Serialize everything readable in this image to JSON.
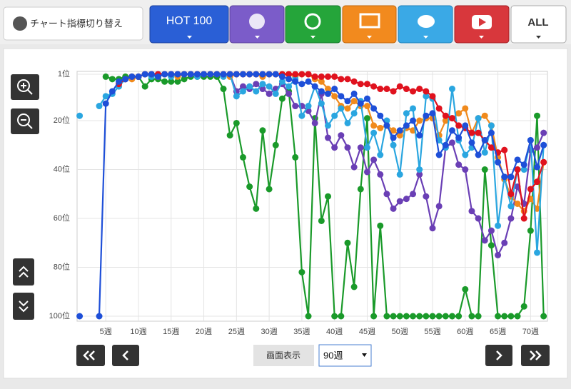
{
  "ui": {
    "switch_label": "チャート指標切り替え",
    "tabs": [
      "HOT 100",
      "ALL"
    ],
    "display_label": "画面表示",
    "period": "90週"
  },
  "chart_data": {
    "type": "line",
    "x": [
      1,
      2,
      3,
      4,
      5,
      6,
      7,
      8,
      9,
      10,
      11,
      12,
      13,
      14,
      15,
      16,
      17,
      18,
      19,
      20,
      21,
      22,
      23,
      24,
      25,
      26,
      27,
      28,
      29,
      30,
      31,
      32,
      33,
      34,
      35,
      36,
      37,
      38,
      39,
      40,
      41,
      42,
      43,
      44,
      45,
      46,
      47,
      48,
      49,
      50,
      51,
      52,
      53,
      54,
      55,
      56,
      57,
      58,
      59,
      60,
      61,
      62,
      63,
      64,
      65,
      66,
      67,
      68,
      69,
      70,
      71,
      72
    ],
    "xlim": [
      0.5,
      72.8
    ],
    "xticks": [
      {
        "value": 5,
        "label": "5週"
      },
      {
        "value": 10,
        "label": "10週"
      },
      {
        "value": 15,
        "label": "15週"
      },
      {
        "value": 20,
        "label": "20週"
      },
      {
        "value": 25,
        "label": "25週"
      },
      {
        "value": 30,
        "label": "30週"
      },
      {
        "value": 35,
        "label": "35週"
      },
      {
        "value": 40,
        "label": "40週"
      },
      {
        "value": 45,
        "label": "45週"
      },
      {
        "value": 50,
        "label": "50週"
      },
      {
        "value": 55,
        "label": "55週"
      },
      {
        "value": 60,
        "label": "60週"
      },
      {
        "value": 65,
        "label": "65週"
      },
      {
        "value": 70,
        "label": "70週"
      }
    ],
    "ylim": [
      100,
      1
    ],
    "yticks": [
      {
        "value": 1,
        "label": "1位"
      },
      {
        "value": 20,
        "label": "20位"
      },
      {
        "value": 40,
        "label": "40位"
      },
      {
        "value": 60,
        "label": "60位"
      },
      {
        "value": 80,
        "label": "80位"
      },
      {
        "value": 100,
        "label": "100位"
      }
    ],
    "grid": true,
    "series": [
      {
        "color": "#1a9a2a",
        "values": [
          null,
          null,
          null,
          null,
          2,
          3,
          3,
          2,
          2,
          2,
          6,
          3,
          3,
          4,
          4,
          4,
          3,
          2,
          2,
          2,
          2,
          2,
          7,
          26,
          21,
          35,
          47,
          56,
          24,
          48,
          30,
          11,
          8,
          35,
          82,
          100,
          19,
          61,
          51,
          100,
          100,
          70,
          88,
          48,
          19,
          100,
          63,
          100,
          100,
          100,
          100,
          100,
          100,
          100,
          100,
          100,
          100,
          100,
          100,
          89,
          100,
          100,
          40,
          71,
          100,
          100,
          100,
          100,
          96,
          65,
          18,
          100
        ]
      },
      {
        "color": "#6a3fb5",
        "values": [
          null,
          null,
          null,
          null,
          null,
          null,
          null,
          3,
          2,
          2,
          1,
          1,
          1,
          1,
          1,
          1,
          1,
          1,
          1,
          1,
          1,
          1,
          1,
          1,
          8,
          6,
          7,
          5,
          7,
          9,
          7,
          5,
          9,
          14,
          14,
          16,
          21,
          9,
          27,
          31,
          26,
          31,
          39,
          31,
          41,
          36,
          42,
          50,
          56,
          53,
          52,
          50,
          42,
          51,
          64,
          55,
          31,
          29,
          38,
          40,
          57,
          60,
          69,
          65,
          75,
          70,
          60,
          47,
          54,
          32,
          31,
          25
        ]
      },
      {
        "color": "#f08a1c",
        "values": [
          null,
          null,
          null,
          null,
          null,
          null,
          null,
          null,
          3,
          2,
          1,
          1,
          2,
          1,
          1,
          2,
          1,
          1,
          1,
          1,
          1,
          1,
          1,
          2,
          1,
          1,
          1,
          1,
          2,
          1,
          1,
          1,
          1,
          2,
          1,
          1,
          3,
          4,
          7,
          10,
          14,
          15,
          12,
          14,
          14,
          22,
          23,
          22,
          24,
          26,
          23,
          24,
          20,
          19,
          19,
          26,
          20,
          19,
          17,
          15,
          25,
          19,
          18,
          22,
          35,
          44,
          51,
          54,
          57,
          52,
          56,
          37
        ]
      },
      {
        "color": "#2aa6e0",
        "values": [
          18,
          null,
          null,
          14,
          10,
          9,
          6,
          3,
          2,
          2,
          1,
          2,
          1,
          1,
          2,
          1,
          1,
          1,
          2,
          1,
          1,
          1,
          2,
          1,
          10,
          8,
          6,
          8,
          5,
          6,
          9,
          4,
          6,
          3,
          18,
          14,
          6,
          13,
          22,
          18,
          15,
          21,
          17,
          12,
          31,
          25,
          34,
          20,
          30,
          42,
          17,
          15,
          40,
          10,
          11,
          28,
          31,
          7,
          28,
          34,
          31,
          19,
          33,
          22,
          63,
          43,
          55,
          40,
          40,
          28,
          74,
          30
        ]
      },
      {
        "color": "#e0121e",
        "values": [
          null,
          null,
          null,
          null,
          null,
          null,
          5,
          3,
          2,
          2,
          1,
          1,
          1,
          1,
          1,
          1,
          1,
          1,
          1,
          1,
          1,
          1,
          1,
          1,
          1,
          1,
          1,
          1,
          1,
          1,
          1,
          1,
          1,
          1,
          1,
          1,
          2,
          2,
          2,
          2,
          3,
          3,
          4,
          5,
          5,
          6,
          7,
          7,
          8,
          6,
          7,
          8,
          7,
          8,
          10,
          15,
          18,
          19,
          22,
          23,
          25,
          25,
          28,
          31,
          33,
          32,
          50,
          40,
          60,
          48,
          45,
          37
        ]
      },
      {
        "color": "#1e4fd8",
        "values": [
          100,
          null,
          null,
          100,
          13,
          8,
          4,
          3,
          2,
          2,
          1,
          1,
          2,
          1,
          1,
          1,
          1,
          1,
          1,
          1,
          1,
          1,
          1,
          1,
          1,
          1,
          1,
          1,
          1,
          1,
          1,
          2,
          3,
          4,
          5,
          4,
          6,
          8,
          9,
          7,
          10,
          12,
          9,
          13,
          11,
          15,
          18,
          22,
          27,
          24,
          22,
          20,
          26,
          18,
          17,
          34,
          30,
          24,
          27,
          22,
          29,
          34,
          28,
          25,
          37,
          43,
          43,
          36,
          38,
          28,
          39,
          30
        ]
      }
    ]
  }
}
